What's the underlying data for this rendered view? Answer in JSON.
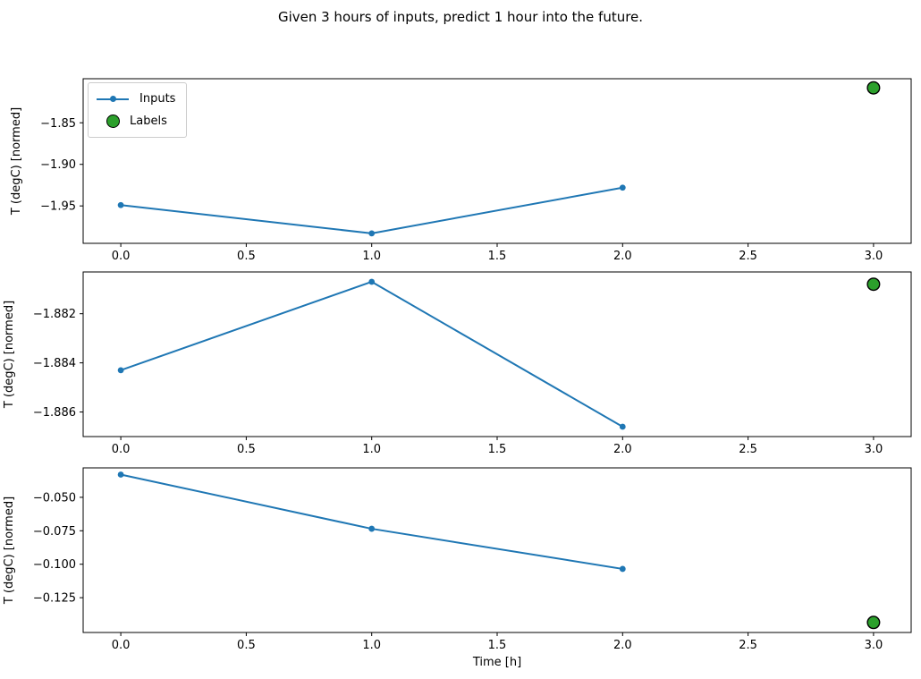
{
  "title": "Given 3 hours of inputs, predict 1 hour into the future.",
  "xlabel": "Time [h]",
  "legend": {
    "items": [
      {
        "label": "Inputs",
        "swatch": "line-with-dot-marker"
      },
      {
        "label": "Labels",
        "swatch": "filled-circle"
      }
    ],
    "position": "upper-left-of-first-subplot"
  },
  "colors": {
    "inputs_line": "#1f77b4",
    "labels_fill": "#2ca02c",
    "labels_edge": "#000000",
    "axis": "#000000",
    "text": "#000000",
    "legend_border": "#cccccc"
  },
  "chart_data": [
    {
      "type": "line",
      "ylabel": "T (degC) [normed]",
      "xlim": [
        -0.15,
        3.15
      ],
      "ylim": [
        -1.995,
        -1.797
      ],
      "x_ticks": [
        0.0,
        0.5,
        1.0,
        1.5,
        2.0,
        2.5,
        3.0
      ],
      "x_tick_labels": [
        "0.0",
        "0.5",
        "1.0",
        "1.5",
        "2.0",
        "2.5",
        "3.0"
      ],
      "y_ticks": [
        -1.85,
        -1.9,
        -1.95
      ],
      "y_tick_labels": [
        "−1.85",
        "−1.90",
        "−1.95"
      ],
      "grid": false,
      "series": [
        {
          "name": "Inputs",
          "kind": "line-marker",
          "x": [
            0,
            1,
            2
          ],
          "y": [
            -1.949,
            -1.983,
            -1.928
          ]
        },
        {
          "name": "Labels",
          "kind": "scatter",
          "x": [
            3
          ],
          "y": [
            -1.808
          ]
        }
      ]
    },
    {
      "type": "line",
      "ylabel": "T (degC) [normed]",
      "xlim": [
        -0.15,
        3.15
      ],
      "ylim": [
        -1.887,
        -1.8803
      ],
      "x_ticks": [
        0.0,
        0.5,
        1.0,
        1.5,
        2.0,
        2.5,
        3.0
      ],
      "x_tick_labels": [
        "0.0",
        "0.5",
        "1.0",
        "1.5",
        "2.0",
        "2.5",
        "3.0"
      ],
      "y_ticks": [
        -1.882,
        -1.884,
        -1.886
      ],
      "y_tick_labels": [
        "−1.882",
        "−1.884",
        "−1.886"
      ],
      "grid": false,
      "series": [
        {
          "name": "Inputs",
          "kind": "line-marker",
          "x": [
            0,
            1,
            2
          ],
          "y": [
            -1.8843,
            -1.8807,
            -1.8866
          ]
        },
        {
          "name": "Labels",
          "kind": "scatter",
          "x": [
            3
          ],
          "y": [
            -1.8808
          ]
        }
      ]
    },
    {
      "type": "line",
      "ylabel": "T (degC) [normed]",
      "xlim": [
        -0.15,
        3.15
      ],
      "ylim": [
        -0.151,
        -0.028
      ],
      "x_ticks": [
        0.0,
        0.5,
        1.0,
        1.5,
        2.0,
        2.5,
        3.0
      ],
      "x_tick_labels": [
        "0.0",
        "0.5",
        "1.0",
        "1.5",
        "2.0",
        "2.5",
        "3.0"
      ],
      "y_ticks": [
        -0.05,
        -0.075,
        -0.1,
        -0.125
      ],
      "y_tick_labels": [
        "−0.050",
        "−0.075",
        "−0.100",
        "−0.125"
      ],
      "grid": false,
      "series": [
        {
          "name": "Inputs",
          "kind": "line-marker",
          "x": [
            0,
            1,
            2
          ],
          "y": [
            -0.033,
            -0.0735,
            -0.1035
          ]
        },
        {
          "name": "Labels",
          "kind": "scatter",
          "x": [
            3
          ],
          "y": [
            -0.1435
          ]
        }
      ]
    }
  ]
}
